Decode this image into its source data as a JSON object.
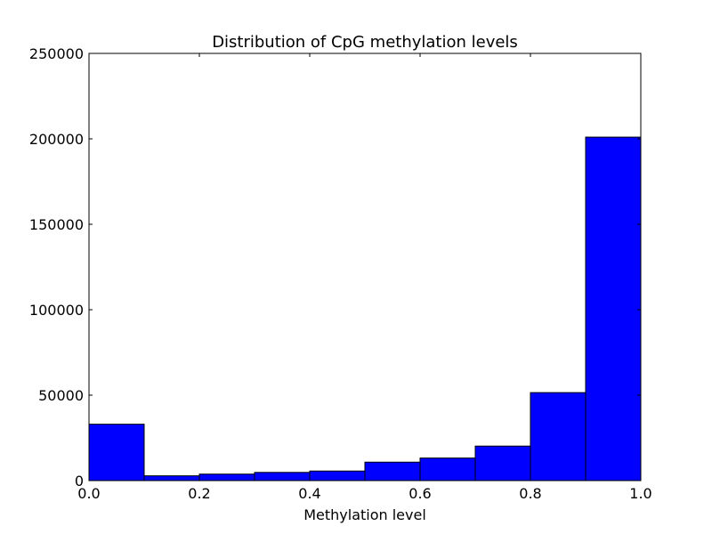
{
  "chart_data": {
    "type": "bar",
    "title": "Distribution of CpG methylation levels",
    "xlabel": "Methylation level",
    "ylabel": "",
    "bins": [
      {
        "start": 0.0,
        "end": 0.1,
        "count": 33000
      },
      {
        "start": 0.1,
        "end": 0.2,
        "count": 2800
      },
      {
        "start": 0.2,
        "end": 0.3,
        "count": 3800
      },
      {
        "start": 0.3,
        "end": 0.4,
        "count": 4800
      },
      {
        "start": 0.4,
        "end": 0.5,
        "count": 5600
      },
      {
        "start": 0.5,
        "end": 0.6,
        "count": 10800
      },
      {
        "start": 0.6,
        "end": 0.7,
        "count": 13200
      },
      {
        "start": 0.7,
        "end": 0.8,
        "count": 20200
      },
      {
        "start": 0.8,
        "end": 0.9,
        "count": 51500
      },
      {
        "start": 0.9,
        "end": 1.0,
        "count": 201000
      }
    ],
    "xlim": [
      0.0,
      1.0
    ],
    "ylim": [
      0,
      250000
    ],
    "xticks": [
      0.0,
      0.2,
      0.4,
      0.6,
      0.8,
      1.0
    ],
    "xtick_labels": [
      "0.0",
      "0.2",
      "0.4",
      "0.6",
      "0.8",
      "1.0"
    ],
    "yticks": [
      0,
      50000,
      100000,
      150000,
      200000,
      250000
    ],
    "ytick_labels": [
      "0",
      "50000",
      "100000",
      "150000",
      "200000",
      "250000"
    ],
    "bar_color": "#0000ff",
    "edge_color": "#000000",
    "grid": false,
    "legend": "none"
  }
}
